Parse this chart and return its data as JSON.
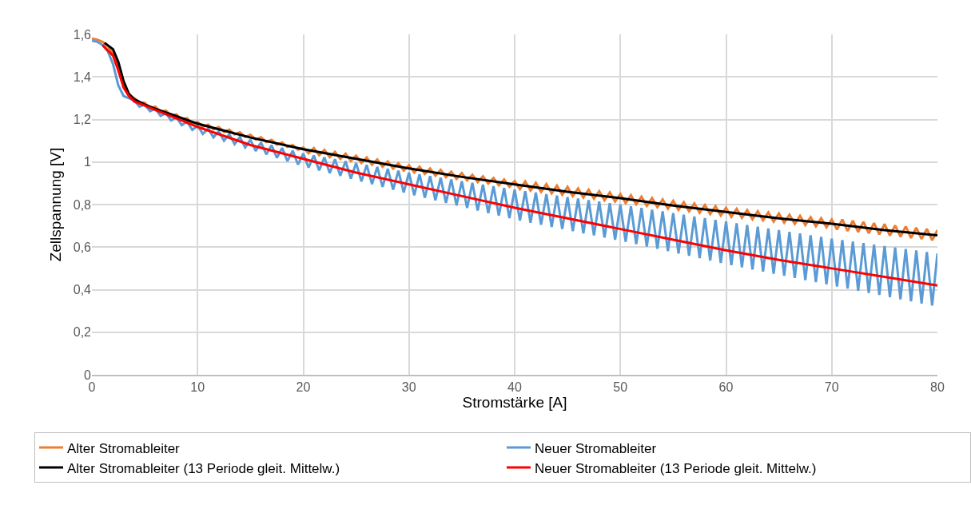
{
  "chart_data": {
    "type": "line",
    "xlabel": "Stromstärke [A]",
    "ylabel": "Zellspannung [V]",
    "x": [
      0,
      0.5,
      1,
      1.5,
      2,
      2.5,
      3,
      3.5,
      4,
      4.5,
      5,
      5.5,
      6,
      6.5,
      7,
      7.5,
      8,
      8.5,
      9,
      9.5,
      10,
      10.5,
      11,
      11.5,
      12,
      12.5,
      13,
      13.5,
      14,
      14.5,
      15,
      15.5,
      16,
      16.5,
      17,
      17.5,
      18,
      18.5,
      19,
      19.5,
      20,
      20.5,
      21,
      21.5,
      22,
      22.5,
      23,
      23.5,
      24,
      24.5,
      25,
      25.5,
      26,
      26.5,
      27,
      27.5,
      28,
      28.5,
      29,
      29.5,
      30,
      30.5,
      31,
      31.5,
      32,
      32.5,
      33,
      33.5,
      34,
      34.5,
      35,
      35.5,
      36,
      36.5,
      37,
      37.5,
      38,
      38.5,
      39,
      39.5,
      40,
      40.5,
      41,
      41.5,
      42,
      42.5,
      43,
      43.5,
      44,
      44.5,
      45,
      45.5,
      46,
      46.5,
      47,
      47.5,
      48,
      48.5,
      49,
      49.5,
      50,
      50.5,
      51,
      51.5,
      52,
      52.5,
      53,
      53.5,
      54,
      54.5,
      55,
      55.5,
      56,
      56.5,
      57,
      57.5,
      58,
      58.5,
      59,
      59.5,
      60,
      60.5,
      61,
      61.5,
      62,
      62.5,
      63,
      63.5,
      64,
      64.5,
      65,
      65.5,
      66,
      66.5,
      67,
      67.5,
      68,
      68.5,
      69,
      69.5,
      70,
      70.5,
      71,
      71.5,
      72,
      72.5,
      73,
      73.5,
      74,
      74.5,
      75,
      75.5,
      76,
      76.5,
      77,
      77.5,
      78,
      78.5,
      79,
      79.5,
      80
    ],
    "series": [
      {
        "name": "Alter Stromableiter",
        "color": "#ed7d31",
        "values": [
          1.58,
          1.575,
          1.565,
          1.545,
          1.51,
          1.45,
          1.37,
          1.32,
          1.3,
          1.28,
          1.278,
          1.253,
          1.26,
          1.235,
          1.242,
          1.217,
          1.224,
          1.199,
          1.206,
          1.181,
          1.188,
          1.166,
          1.176,
          1.154,
          1.164,
          1.142,
          1.152,
          1.13,
          1.14,
          1.118,
          1.128,
          1.106,
          1.116,
          1.094,
          1.104,
          1.082,
          1.092,
          1.07,
          1.08,
          1.058,
          1.068,
          1.041,
          1.066,
          1.032,
          1.057,
          1.023,
          1.048,
          1.014,
          1.039,
          1.005,
          1.03,
          0.996,
          1.021,
          0.987,
          1.012,
          0.978,
          1.003,
          0.969,
          0.994,
          0.96,
          0.985,
          0.951,
          0.978,
          0.944,
          0.97,
          0.936,
          0.963,
          0.929,
          0.955,
          0.921,
          0.948,
          0.914,
          0.94,
          0.906,
          0.933,
          0.899,
          0.925,
          0.891,
          0.918,
          0.884,
          0.91,
          0.872,
          0.909,
          0.866,
          0.902,
          0.859,
          0.896,
          0.853,
          0.889,
          0.846,
          0.883,
          0.84,
          0.876,
          0.833,
          0.87,
          0.827,
          0.863,
          0.82,
          0.857,
          0.814,
          0.85,
          0.807,
          0.844,
          0.801,
          0.837,
          0.794,
          0.831,
          0.788,
          0.824,
          0.781,
          0.818,
          0.775,
          0.811,
          0.768,
          0.805,
          0.762,
          0.798,
          0.755,
          0.792,
          0.749,
          0.785,
          0.742,
          0.78,
          0.737,
          0.774,
          0.731,
          0.769,
          0.726,
          0.763,
          0.72,
          0.758,
          0.715,
          0.752,
          0.709,
          0.747,
          0.704,
          0.741,
          0.698,
          0.736,
          0.693,
          0.73,
          0.682,
          0.73,
          0.676,
          0.724,
          0.671,
          0.719,
          0.665,
          0.713,
          0.66,
          0.708,
          0.654,
          0.702,
          0.649,
          0.697,
          0.643,
          0.691,
          0.638,
          0.686,
          0.632,
          0.68
        ]
      },
      {
        "name": "Neuer Stromableiter",
        "color": "#5b9bd5",
        "values": [
          1.57,
          1.565,
          1.55,
          1.52,
          1.46,
          1.36,
          1.31,
          1.3,
          1.29,
          1.26,
          1.27,
          1.239,
          1.25,
          1.217,
          1.23,
          1.195,
          1.21,
          1.173,
          1.19,
          1.151,
          1.17,
          1.132,
          1.157,
          1.116,
          1.144,
          1.1,
          1.131,
          1.084,
          1.118,
          1.068,
          1.105,
          1.052,
          1.092,
          1.036,
          1.079,
          1.02,
          1.066,
          1.004,
          1.053,
          0.988,
          1.04,
          0.974,
          1.031,
          0.961,
          1.022,
          0.948,
          1.013,
          0.935,
          1.004,
          0.922,
          0.995,
          0.909,
          0.986,
          0.896,
          0.977,
          0.883,
          0.968,
          0.87,
          0.959,
          0.857,
          0.95,
          0.844,
          0.942,
          0.832,
          0.934,
          0.82,
          0.926,
          0.808,
          0.918,
          0.796,
          0.91,
          0.784,
          0.902,
          0.772,
          0.894,
          0.76,
          0.886,
          0.748,
          0.878,
          0.736,
          0.87,
          0.725,
          0.863,
          0.715,
          0.856,
          0.705,
          0.849,
          0.695,
          0.842,
          0.685,
          0.835,
          0.675,
          0.828,
          0.665,
          0.821,
          0.655,
          0.814,
          0.645,
          0.807,
          0.635,
          0.8,
          0.625,
          0.792,
          0.614,
          0.784,
          0.603,
          0.776,
          0.592,
          0.768,
          0.581,
          0.76,
          0.57,
          0.752,
          0.559,
          0.744,
          0.548,
          0.736,
          0.537,
          0.728,
          0.526,
          0.72,
          0.515,
          0.712,
          0.505,
          0.704,
          0.495,
          0.696,
          0.485,
          0.688,
          0.475,
          0.68,
          0.465,
          0.672,
          0.455,
          0.664,
          0.445,
          0.656,
          0.435,
          0.648,
          0.425,
          0.64,
          0.415,
          0.633,
          0.405,
          0.626,
          0.395,
          0.619,
          0.385,
          0.612,
          0.375,
          0.605,
          0.365,
          0.598,
          0.355,
          0.591,
          0.345,
          0.584,
          0.335,
          0.577,
          0.325,
          0.57
        ]
      },
      {
        "name": "Alter Stromableiter (13 Periode gleit. Mittelw.)",
        "color": "#000000",
        "x": [
          1.2,
          2,
          2.5,
          3,
          3.5,
          4,
          5,
          6,
          8,
          10,
          15,
          20,
          25,
          30,
          35,
          40,
          45,
          50,
          55,
          60,
          65,
          70,
          75,
          80
        ],
        "values": [
          1.56,
          1.53,
          1.47,
          1.38,
          1.32,
          1.295,
          1.27,
          1.25,
          1.215,
          1.18,
          1.115,
          1.06,
          1.015,
          0.97,
          0.93,
          0.895,
          0.86,
          0.83,
          0.795,
          0.765,
          0.735,
          0.71,
          0.68,
          0.655
        ]
      },
      {
        "name": "Neuer Stromableiter (13 Periode gleit. Mittelw.)",
        "color": "#ff0000",
        "x": [
          1,
          2,
          2.5,
          3,
          3.5,
          4,
          5,
          6,
          8,
          10,
          15,
          20,
          25,
          30,
          35,
          40,
          45,
          50,
          55,
          60,
          65,
          70,
          75,
          80
        ],
        "values": [
          1.55,
          1.5,
          1.43,
          1.35,
          1.31,
          1.285,
          1.265,
          1.245,
          1.205,
          1.165,
          1.08,
          1.015,
          0.95,
          0.895,
          0.84,
          0.785,
          0.735,
          0.685,
          0.635,
          0.585,
          0.54,
          0.5,
          0.46,
          0.42
        ]
      }
    ],
    "xlim": [
      0,
      80
    ],
    "xticks": [
      0,
      10,
      20,
      30,
      40,
      50,
      60,
      70,
      80
    ],
    "ylim": [
      0,
      1.6
    ],
    "yticks": [
      0,
      {
        "value": 0.2,
        "label": "0,2"
      },
      {
        "value": 0.4,
        "label": "0,4"
      },
      {
        "value": 0.6,
        "label": "0,6"
      },
      {
        "value": 0.8,
        "label": "0,8"
      },
      1,
      {
        "value": 1.2,
        "label": "1,2"
      },
      {
        "value": 1.4,
        "label": "1,4"
      },
      {
        "value": 1.6,
        "label": "1,6"
      }
    ],
    "grid": true,
    "legend": "bottom",
    "marker": "none",
    "line_style": "solid"
  }
}
